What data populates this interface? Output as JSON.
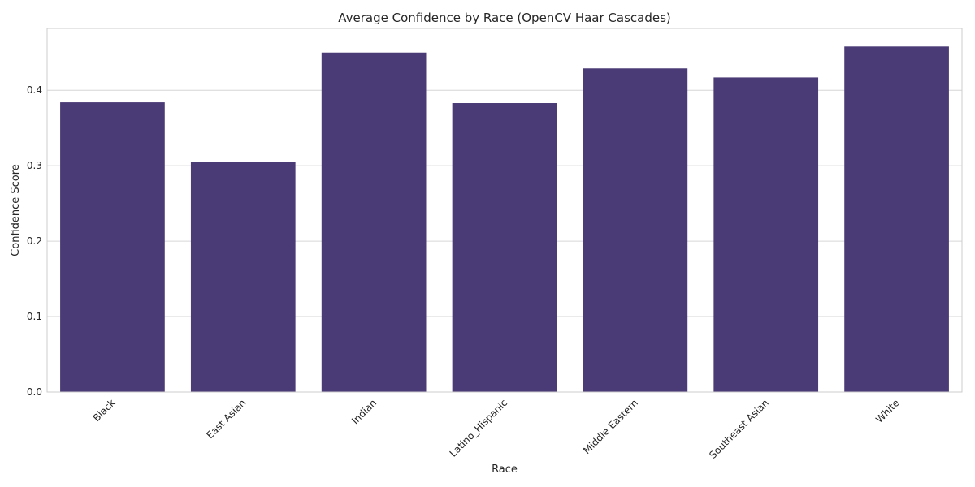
{
  "chart_data": {
    "type": "bar",
    "title": "Average Confidence by Race (OpenCV Haar Cascades)",
    "xlabel": "Race",
    "ylabel": "Confidence Score",
    "categories": [
      "Black",
      "East Asian",
      "Indian",
      "Latino_Hispanic",
      "Middle Eastern",
      "Southeast Asian",
      "White"
    ],
    "values": [
      0.384,
      0.305,
      0.45,
      0.383,
      0.429,
      0.417,
      0.458
    ],
    "ylim": [
      0,
      0.482
    ],
    "yticks": [
      0.0,
      0.1,
      0.2,
      0.3,
      0.4
    ],
    "ytick_labels": [
      "0.0",
      "0.1",
      "0.2",
      "0.3",
      "0.4"
    ],
    "grid": true,
    "legend": "none",
    "colors": {
      "bar": "#4a3a76",
      "grid": "#d6d6d6",
      "frame": "#cccccc",
      "text": "#262626"
    }
  }
}
